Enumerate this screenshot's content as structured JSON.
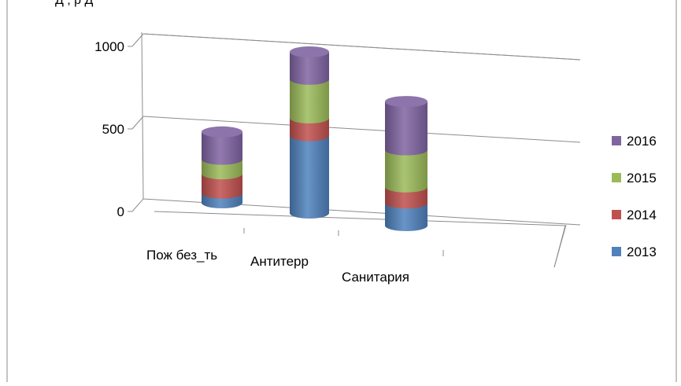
{
  "page": {
    "top_fragment": "Д , р Д"
  },
  "chart_data": {
    "type": "bar",
    "chart_style": "3d-stacked-cylinder",
    "categories": [
      "Пож без_ть",
      "Антитерр",
      "Санитария"
    ],
    "series": [
      {
        "name": "2013",
        "values": [
          60,
          480,
          140
        ],
        "color": "#4f81bd"
      },
      {
        "name": "2014",
        "values": [
          120,
          110,
          100
        ],
        "color": "#c0504d"
      },
      {
        "name": "2015",
        "values": [
          90,
          240,
          230
        ],
        "color": "#9bbb59"
      },
      {
        "name": "2016",
        "values": [
          170,
          170,
          300
        ],
        "color": "#8064a2"
      }
    ],
    "y_ticks": [
      "0",
      "500",
      "1000"
    ],
    "ylim": [
      0,
      1000
    ],
    "grid": true,
    "legend_position": "right"
  }
}
